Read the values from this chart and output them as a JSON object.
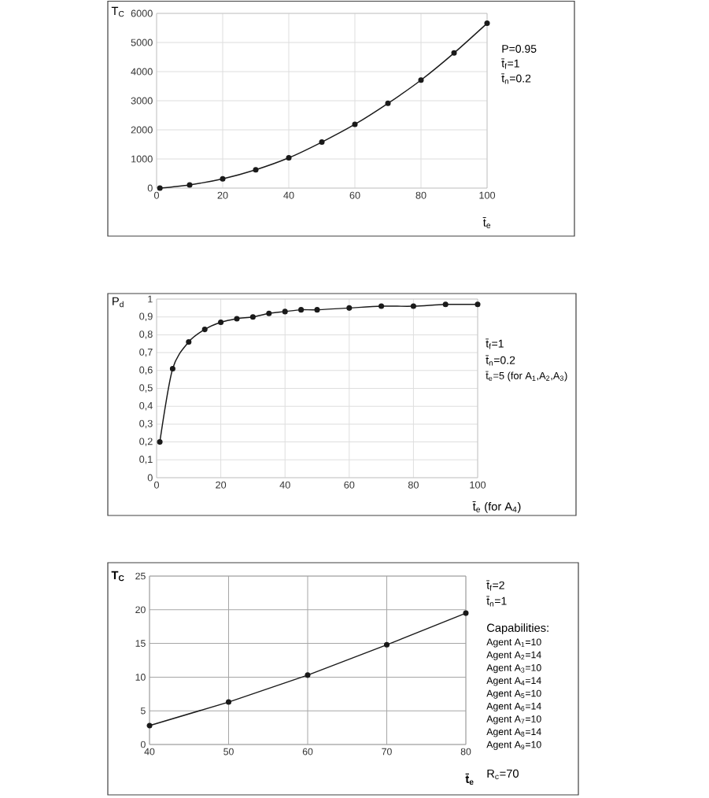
{
  "chart_data": [
    {
      "type": "line",
      "xlabel": "t̄$_{e}$",
      "ylabel": "T$_{C}$",
      "x": [
        1,
        10,
        20,
        30,
        40,
        50,
        60,
        70,
        80,
        90,
        100
      ],
      "values": [
        0,
        110,
        320,
        630,
        1040,
        1580,
        2190,
        2910,
        3710,
        4640,
        5660
      ],
      "color": "#1a1a1a",
      "xlim": [
        0,
        100
      ],
      "ylim": [
        0,
        6000
      ],
      "xticks": [
        0,
        20,
        40,
        60,
        80,
        100
      ],
      "yticks": [
        0,
        1000,
        2000,
        3000,
        4000,
        5000,
        6000
      ],
      "grid": true,
      "marker": "circle",
      "line_style": "solid",
      "annotations": [
        "P=0.95",
        "t̄$_{f}$=1",
        "t̄$_{n}$=0.2"
      ]
    },
    {
      "type": "line",
      "xlabel": "t̄$_{e}$ (for A$_{4}$)",
      "ylabel": "P$_{d}$",
      "x": [
        1,
        5,
        10,
        15,
        20,
        25,
        30,
        35,
        40,
        45,
        50,
        60,
        70,
        80,
        90,
        100
      ],
      "values": [
        0.2,
        0.61,
        0.76,
        0.83,
        0.87,
        0.89,
        0.9,
        0.92,
        0.93,
        0.94,
        0.94,
        0.95,
        0.96,
        0.96,
        0.97,
        0.97
      ],
      "color": "#1a1a1a",
      "xlim": [
        0,
        100
      ],
      "ylim": [
        0,
        1
      ],
      "xticks": [
        0,
        20,
        40,
        60,
        80,
        100
      ],
      "yticks": [
        0,
        {
          "value": 0.1,
          "label": "0,1"
        },
        {
          "value": 0.2,
          "label": "0,2"
        },
        {
          "value": 0.3,
          "label": "0,3"
        },
        {
          "value": 0.4,
          "label": "0,4"
        },
        {
          "value": 0.5,
          "label": "0,5"
        },
        {
          "value": 0.6,
          "label": "0,6"
        },
        {
          "value": 0.7,
          "label": "0,7"
        },
        {
          "value": 0.8,
          "label": "0,8"
        },
        {
          "value": 0.9,
          "label": "0,9"
        },
        1
      ],
      "grid": true,
      "marker": "circle",
      "line_style": "solid",
      "annotations": [
        "t̄$_{f}$=1",
        "t̄$_{n}$=0.2",
        "t̄$_{e}$=5 (for A$_{1}$,A$_{2}$,A$_{3}$)"
      ]
    },
    {
      "type": "line",
      "xlabel": "t̄$_{e}$",
      "ylabel": "T$_{C}$",
      "x": [
        40,
        50,
        60,
        70,
        80
      ],
      "values": [
        2.8,
        6.3,
        10.3,
        14.8,
        19.5
      ],
      "color": "#1a1a1a",
      "xlim": [
        40,
        80
      ],
      "ylim": [
        0,
        25
      ],
      "xticks": [
        40,
        50,
        60,
        70,
        80
      ],
      "yticks": [
        0,
        5,
        10,
        15,
        20,
        25
      ],
      "grid": true,
      "marker": "circle",
      "line_style": "solid",
      "annotations": [
        "t̄$_{f}$=2",
        "t̄$_{n}$=1",
        "Capabilities:",
        "Agent A$_{1}$=10",
        "Agent A$_{2}$=14",
        "Agent A$_{3}$=10",
        "Agent A$_{4}$=14",
        "Agent A$_{5}$=10",
        "Agent A$_{6}$=14",
        "Agent A$_{7}$=10",
        "Agent A$_{8}$=14",
        "Agent A$_{9}$=10",
        "R$_{c}$=70"
      ]
    }
  ]
}
